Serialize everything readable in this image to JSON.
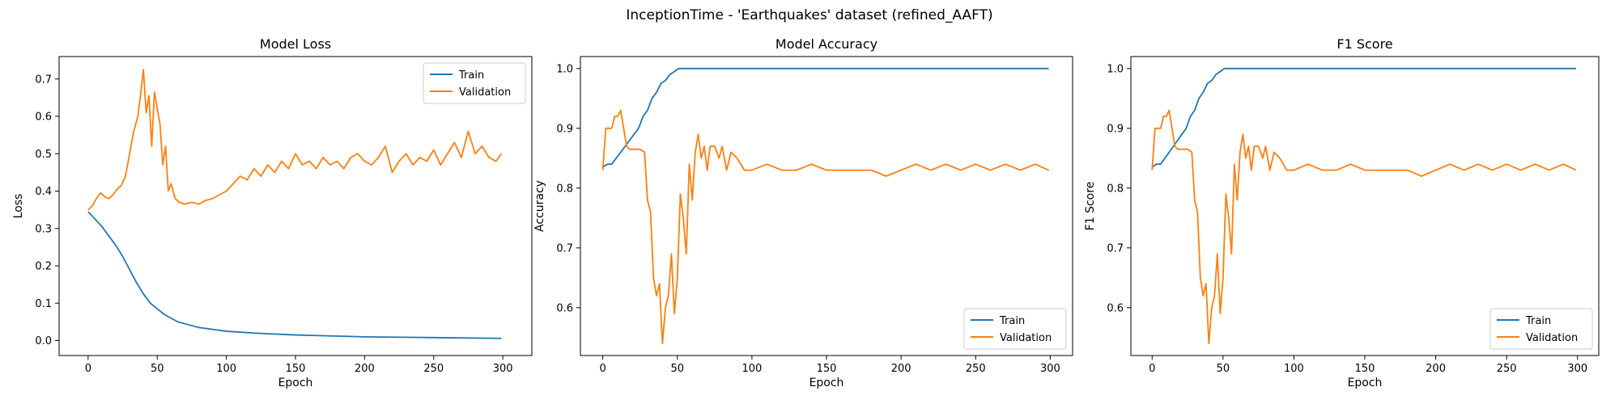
{
  "figure_title": "InceptionTime - 'Earthquakes' dataset (refined_AAFT)",
  "colors": {
    "train": "#1f77b4",
    "validation": "#ff7f0e"
  },
  "chart_data": [
    {
      "type": "line",
      "title": "Model Loss",
      "xlabel": "Epoch",
      "ylabel": "Loss",
      "xlim": [
        -21,
        321
      ],
      "ylim": [
        -0.04,
        0.76
      ],
      "xticks": [
        0,
        50,
        100,
        150,
        200,
        250,
        300
      ],
      "yticks": [
        0.0,
        0.1,
        0.2,
        0.3,
        0.4,
        0.5,
        0.6,
        0.7
      ],
      "ytick_labels": [
        "0.0",
        "0.1",
        "0.2",
        "0.3",
        "0.4",
        "0.5",
        "0.6",
        "0.7"
      ],
      "legend": {
        "placement": "top-right",
        "entries": [
          "Train",
          "Validation"
        ]
      },
      "series": [
        {
          "name": "Train",
          "x": [
            0,
            5,
            10,
            15,
            20,
            25,
            30,
            35,
            40,
            45,
            50,
            55,
            60,
            65,
            70,
            80,
            90,
            100,
            120,
            150,
            200,
            250,
            299
          ],
          "y": [
            0.345,
            0.325,
            0.305,
            0.28,
            0.255,
            0.225,
            0.19,
            0.155,
            0.125,
            0.1,
            0.085,
            0.07,
            0.06,
            0.05,
            0.045,
            0.035,
            0.03,
            0.025,
            0.02,
            0.015,
            0.01,
            0.008,
            0.006
          ]
        },
        {
          "name": "Validation",
          "x": [
            0,
            3,
            6,
            9,
            12,
            15,
            18,
            21,
            24,
            27,
            30,
            33,
            36,
            38,
            40,
            42,
            44,
            46,
            48,
            50,
            52,
            54,
            56,
            58,
            60,
            63,
            66,
            70,
            75,
            80,
            85,
            90,
            95,
            100,
            105,
            110,
            115,
            120,
            125,
            130,
            135,
            140,
            145,
            150,
            155,
            160,
            165,
            170,
            175,
            180,
            185,
            190,
            195,
            200,
            205,
            210,
            215,
            220,
            225,
            230,
            235,
            240,
            245,
            250,
            255,
            260,
            265,
            270,
            275,
            280,
            285,
            290,
            295,
            299
          ],
          "y": [
            0.35,
            0.36,
            0.38,
            0.395,
            0.385,
            0.38,
            0.39,
            0.405,
            0.415,
            0.44,
            0.5,
            0.56,
            0.6,
            0.66,
            0.725,
            0.61,
            0.655,
            0.52,
            0.665,
            0.62,
            0.58,
            0.47,
            0.52,
            0.4,
            0.42,
            0.38,
            0.37,
            0.365,
            0.37,
            0.365,
            0.375,
            0.38,
            0.39,
            0.4,
            0.42,
            0.44,
            0.43,
            0.46,
            0.44,
            0.47,
            0.45,
            0.48,
            0.46,
            0.5,
            0.47,
            0.48,
            0.46,
            0.49,
            0.47,
            0.48,
            0.46,
            0.49,
            0.5,
            0.48,
            0.47,
            0.49,
            0.52,
            0.45,
            0.48,
            0.5,
            0.47,
            0.49,
            0.48,
            0.51,
            0.47,
            0.5,
            0.53,
            0.49,
            0.56,
            0.5,
            0.52,
            0.49,
            0.48,
            0.5
          ]
        }
      ]
    },
    {
      "type": "line",
      "title": "Model Accuracy",
      "xlabel": "Epoch",
      "ylabel": "Accuracy",
      "xlim": [
        -15,
        315
      ],
      "ylim": [
        0.52,
        1.02
      ],
      "xticks": [
        0,
        50,
        100,
        150,
        200,
        250,
        300
      ],
      "yticks": [
        0.6,
        0.7,
        0.8,
        0.9,
        1.0
      ],
      "ytick_labels": [
        "0.6",
        "0.7",
        "0.8",
        "0.9",
        "1.0"
      ],
      "legend": {
        "placement": "bottom-right",
        "entries": [
          "Train",
          "Validation"
        ]
      },
      "series": [
        {
          "name": "Train",
          "x": [
            0,
            3,
            6,
            9,
            12,
            15,
            18,
            21,
            24,
            27,
            30,
            33,
            36,
            39,
            42,
            45,
            48,
            51,
            55,
            100,
            150,
            200,
            250,
            299
          ],
          "y": [
            0.835,
            0.84,
            0.84,
            0.85,
            0.86,
            0.87,
            0.88,
            0.89,
            0.9,
            0.92,
            0.93,
            0.95,
            0.96,
            0.975,
            0.98,
            0.99,
            0.995,
            1.0,
            1.0,
            1.0,
            1.0,
            1.0,
            1.0,
            1.0
          ]
        },
        {
          "name": "Validation",
          "x": [
            0,
            2,
            4,
            6,
            8,
            10,
            12,
            14,
            16,
            18,
            20,
            22,
            25,
            28,
            30,
            32,
            34,
            36,
            38,
            40,
            42,
            44,
            46,
            48,
            50,
            52,
            54,
            56,
            58,
            60,
            62,
            64,
            66,
            68,
            70,
            72,
            75,
            78,
            80,
            83,
            86,
            90,
            95,
            100,
            110,
            120,
            130,
            140,
            150,
            160,
            170,
            180,
            190,
            200,
            210,
            220,
            230,
            240,
            250,
            260,
            270,
            280,
            290,
            299
          ],
          "y": [
            0.83,
            0.9,
            0.9,
            0.9,
            0.92,
            0.92,
            0.93,
            0.9,
            0.87,
            0.865,
            0.865,
            0.865,
            0.865,
            0.86,
            0.78,
            0.76,
            0.65,
            0.62,
            0.64,
            0.54,
            0.6,
            0.62,
            0.69,
            0.59,
            0.65,
            0.79,
            0.75,
            0.69,
            0.84,
            0.78,
            0.86,
            0.89,
            0.85,
            0.87,
            0.83,
            0.87,
            0.87,
            0.85,
            0.87,
            0.83,
            0.86,
            0.85,
            0.83,
            0.83,
            0.84,
            0.83,
            0.83,
            0.84,
            0.83,
            0.83,
            0.83,
            0.83,
            0.82,
            0.83,
            0.84,
            0.83,
            0.84,
            0.83,
            0.84,
            0.83,
            0.84,
            0.83,
            0.84,
            0.83
          ]
        }
      ]
    },
    {
      "type": "line",
      "title": "F1 Score",
      "xlabel": "Epoch",
      "ylabel": "F1 Score",
      "xlim": [
        -15,
        315
      ],
      "ylim": [
        0.52,
        1.02
      ],
      "xticks": [
        0,
        50,
        100,
        150,
        200,
        250,
        300
      ],
      "yticks": [
        0.6,
        0.7,
        0.8,
        0.9,
        1.0
      ],
      "ytick_labels": [
        "0.6",
        "0.7",
        "0.8",
        "0.9",
        "1.0"
      ],
      "legend": {
        "placement": "bottom-right",
        "entries": [
          "Train",
          "Validation"
        ]
      },
      "series": [
        {
          "name": "Train",
          "x": [
            0,
            3,
            6,
            9,
            12,
            15,
            18,
            21,
            24,
            27,
            30,
            33,
            36,
            39,
            42,
            45,
            48,
            51,
            55,
            100,
            150,
            200,
            250,
            299
          ],
          "y": [
            0.835,
            0.84,
            0.84,
            0.85,
            0.86,
            0.87,
            0.88,
            0.89,
            0.9,
            0.92,
            0.93,
            0.95,
            0.96,
            0.975,
            0.98,
            0.99,
            0.995,
            1.0,
            1.0,
            1.0,
            1.0,
            1.0,
            1.0,
            1.0
          ]
        },
        {
          "name": "Validation",
          "x": [
            0,
            2,
            4,
            6,
            8,
            10,
            12,
            14,
            16,
            18,
            20,
            22,
            25,
            28,
            30,
            32,
            34,
            36,
            38,
            40,
            42,
            44,
            46,
            48,
            50,
            52,
            54,
            56,
            58,
            60,
            62,
            64,
            66,
            68,
            70,
            72,
            75,
            78,
            80,
            83,
            86,
            90,
            95,
            100,
            110,
            120,
            130,
            140,
            150,
            160,
            170,
            180,
            190,
            200,
            210,
            220,
            230,
            240,
            250,
            260,
            270,
            280,
            290,
            299
          ],
          "y": [
            0.83,
            0.9,
            0.9,
            0.9,
            0.92,
            0.92,
            0.93,
            0.9,
            0.87,
            0.865,
            0.865,
            0.865,
            0.865,
            0.86,
            0.78,
            0.76,
            0.65,
            0.62,
            0.64,
            0.54,
            0.6,
            0.62,
            0.69,
            0.59,
            0.65,
            0.79,
            0.75,
            0.69,
            0.84,
            0.78,
            0.86,
            0.89,
            0.85,
            0.87,
            0.83,
            0.87,
            0.87,
            0.85,
            0.87,
            0.83,
            0.86,
            0.85,
            0.83,
            0.83,
            0.84,
            0.83,
            0.83,
            0.84,
            0.83,
            0.83,
            0.83,
            0.83,
            0.82,
            0.83,
            0.84,
            0.83,
            0.84,
            0.83,
            0.84,
            0.83,
            0.84,
            0.83,
            0.84,
            0.83
          ]
        }
      ]
    }
  ]
}
